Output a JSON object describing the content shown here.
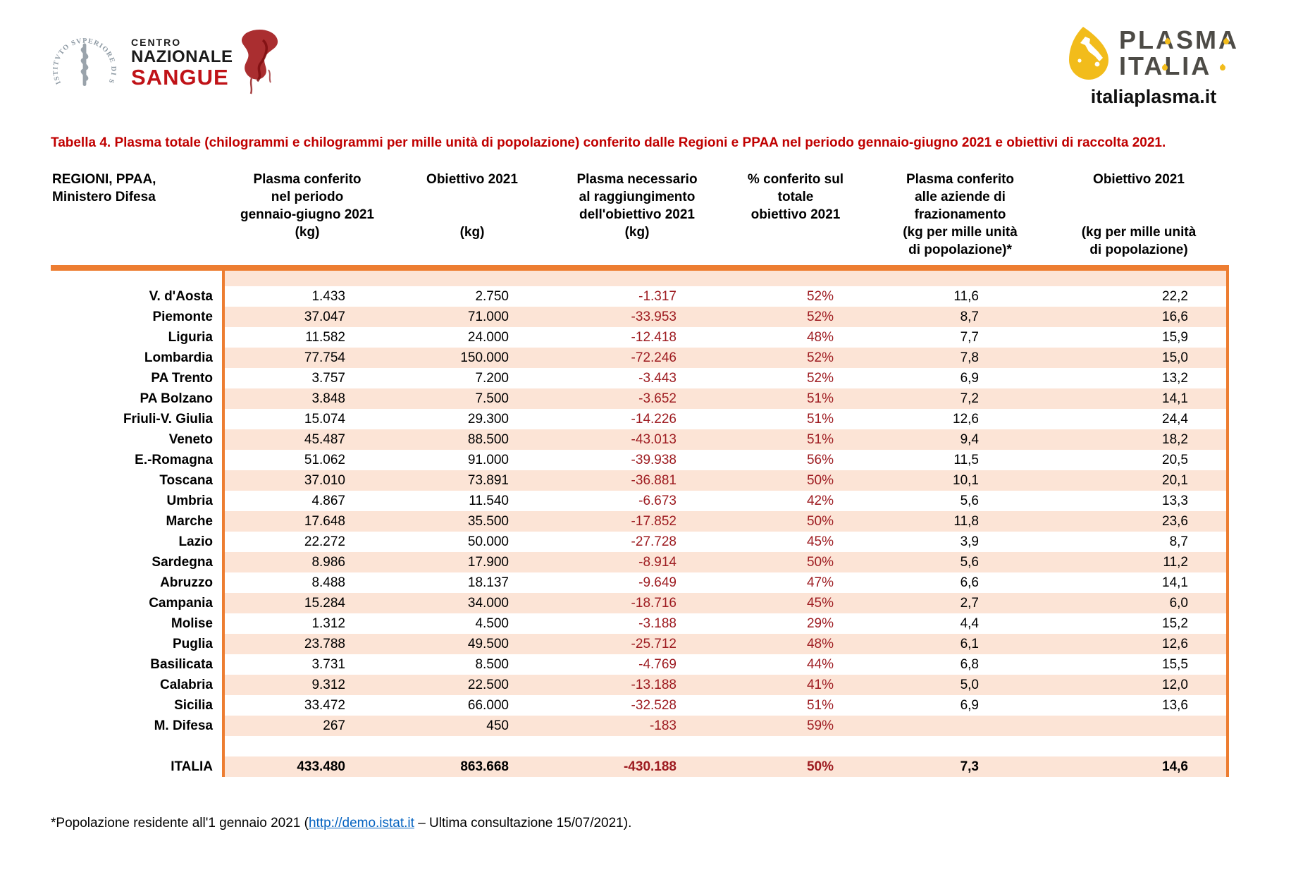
{
  "logos": {
    "iss_circle_text": "ISTITVTO SVPERIORE DI SANITÀ",
    "cns": {
      "line1": "CENTRO",
      "line2": "NAZIONALE",
      "line3": "SANGUE"
    },
    "plasma": {
      "word1": "PLASMA",
      "word2": "ITALIA",
      "site": "italiaplasma.it"
    }
  },
  "title": "Tabella 4. Plasma totale (chilogrammi e chilogrammi per mille unità di popolazione) conferito dalle Regioni e PPAA nel periodo gennaio-giugno 2021 e obiettivi di raccolta 2021.",
  "colors": {
    "accent_orange": "#ED7D31",
    "row_stripe": "#FCE4D6",
    "negative_red": "#9E1C21",
    "title_red": "#C00000",
    "link_blue": "#0563C1",
    "plasma_yellow": "#F2BC1B",
    "sangue_red": "#C01318"
  },
  "table": {
    "row_header": "REGIONI, PPAA,\nMinistero Difesa",
    "columns": [
      {
        "title": "Plasma conferito\nnel periodo\ngennaio-giugno 2021",
        "unit": "(kg)"
      },
      {
        "title": "Obiettivo 2021",
        "unit": "(kg)"
      },
      {
        "title": "Plasma necessario\nal raggiungimento\ndell'obiettivo 2021",
        "unit": "(kg)"
      },
      {
        "title": "% conferito sul\ntotale\nobiettivo 2021",
        "unit": ""
      },
      {
        "title": "Plasma conferito\nalle aziende di\nfrazionamento",
        "unit": "(kg per mille unità\ndi popolazione)*"
      },
      {
        "title": "Obiettivo 2021",
        "unit": "(kg per mille unità\ndi popolazione)"
      }
    ],
    "rows": [
      {
        "region": "V. d'Aosta",
        "conferito": "1.433",
        "obiettivo": "2.750",
        "necessario": "-1.317",
        "pct": "52%",
        "kg_mille": "11,6",
        "obiettivo_mille": "22,2"
      },
      {
        "region": "Piemonte",
        "conferito": "37.047",
        "obiettivo": "71.000",
        "necessario": "-33.953",
        "pct": "52%",
        "kg_mille": "8,7",
        "obiettivo_mille": "16,6"
      },
      {
        "region": "Liguria",
        "conferito": "11.582",
        "obiettivo": "24.000",
        "necessario": "-12.418",
        "pct": "48%",
        "kg_mille": "7,7",
        "obiettivo_mille": "15,9"
      },
      {
        "region": "Lombardia",
        "conferito": "77.754",
        "obiettivo": "150.000",
        "necessario": "-72.246",
        "pct": "52%",
        "kg_mille": "7,8",
        "obiettivo_mille": "15,0"
      },
      {
        "region": "PA Trento",
        "conferito": "3.757",
        "obiettivo": "7.200",
        "necessario": "-3.443",
        "pct": "52%",
        "kg_mille": "6,9",
        "obiettivo_mille": "13,2"
      },
      {
        "region": "PA Bolzano",
        "conferito": "3.848",
        "obiettivo": "7.500",
        "necessario": "-3.652",
        "pct": "51%",
        "kg_mille": "7,2",
        "obiettivo_mille": "14,1"
      },
      {
        "region": "Friuli-V. Giulia",
        "conferito": "15.074",
        "obiettivo": "29.300",
        "necessario": "-14.226",
        "pct": "51%",
        "kg_mille": "12,6",
        "obiettivo_mille": "24,4"
      },
      {
        "region": "Veneto",
        "conferito": "45.487",
        "obiettivo": "88.500",
        "necessario": "-43.013",
        "pct": "51%",
        "kg_mille": "9,4",
        "obiettivo_mille": "18,2"
      },
      {
        "region": "E.-Romagna",
        "conferito": "51.062",
        "obiettivo": "91.000",
        "necessario": "-39.938",
        "pct": "56%",
        "kg_mille": "11,5",
        "obiettivo_mille": "20,5"
      },
      {
        "region": "Toscana",
        "conferito": "37.010",
        "obiettivo": "73.891",
        "necessario": "-36.881",
        "pct": "50%",
        "kg_mille": "10,1",
        "obiettivo_mille": "20,1"
      },
      {
        "region": "Umbria",
        "conferito": "4.867",
        "obiettivo": "11.540",
        "necessario": "-6.673",
        "pct": "42%",
        "kg_mille": "5,6",
        "obiettivo_mille": "13,3"
      },
      {
        "region": "Marche",
        "conferito": "17.648",
        "obiettivo": "35.500",
        "necessario": "-17.852",
        "pct": "50%",
        "kg_mille": "11,8",
        "obiettivo_mille": "23,6"
      },
      {
        "region": "Lazio",
        "conferito": "22.272",
        "obiettivo": "50.000",
        "necessario": "-27.728",
        "pct": "45%",
        "kg_mille": "3,9",
        "obiettivo_mille": "8,7"
      },
      {
        "region": "Sardegna",
        "conferito": "8.986",
        "obiettivo": "17.900",
        "necessario": "-8.914",
        "pct": "50%",
        "kg_mille": "5,6",
        "obiettivo_mille": "11,2"
      },
      {
        "region": "Abruzzo",
        "conferito": "8.488",
        "obiettivo": "18.137",
        "necessario": "-9.649",
        "pct": "47%",
        "kg_mille": "6,6",
        "obiettivo_mille": "14,1"
      },
      {
        "region": "Campania",
        "conferito": "15.284",
        "obiettivo": "34.000",
        "necessario": "-18.716",
        "pct": "45%",
        "kg_mille": "2,7",
        "obiettivo_mille": "6,0"
      },
      {
        "region": "Molise",
        "conferito": "1.312",
        "obiettivo": "4.500",
        "necessario": "-3.188",
        "pct": "29%",
        "kg_mille": "4,4",
        "obiettivo_mille": "15,2"
      },
      {
        "region": "Puglia",
        "conferito": "23.788",
        "obiettivo": "49.500",
        "necessario": "-25.712",
        "pct": "48%",
        "kg_mille": "6,1",
        "obiettivo_mille": "12,6"
      },
      {
        "region": "Basilicata",
        "conferito": "3.731",
        "obiettivo": "8.500",
        "necessario": "-4.769",
        "pct": "44%",
        "kg_mille": "6,8",
        "obiettivo_mille": "15,5"
      },
      {
        "region": "Calabria",
        "conferito": "9.312",
        "obiettivo": "22.500",
        "necessario": "-13.188",
        "pct": "41%",
        "kg_mille": "5,0",
        "obiettivo_mille": "12,0"
      },
      {
        "region": "Sicilia",
        "conferito": "33.472",
        "obiettivo": "66.000",
        "necessario": "-32.528",
        "pct": "51%",
        "kg_mille": "6,9",
        "obiettivo_mille": "13,6"
      },
      {
        "region": "M. Difesa",
        "conferito": "267",
        "obiettivo": "450",
        "necessario": "-183",
        "pct": "59%",
        "kg_mille": "",
        "obiettivo_mille": ""
      }
    ],
    "total": {
      "region": "ITALIA",
      "conferito": "433.480",
      "obiettivo": "863.668",
      "necessario": "-430.188",
      "pct": "50%",
      "kg_mille": "7,3",
      "obiettivo_mille": "14,6"
    }
  },
  "footnote": {
    "prefix": "*Popolazione residente all'1 gennaio 2021 (",
    "link": "http://demo.istat.it",
    "suffix": " – Ultima consultazione 15/07/2021)."
  }
}
